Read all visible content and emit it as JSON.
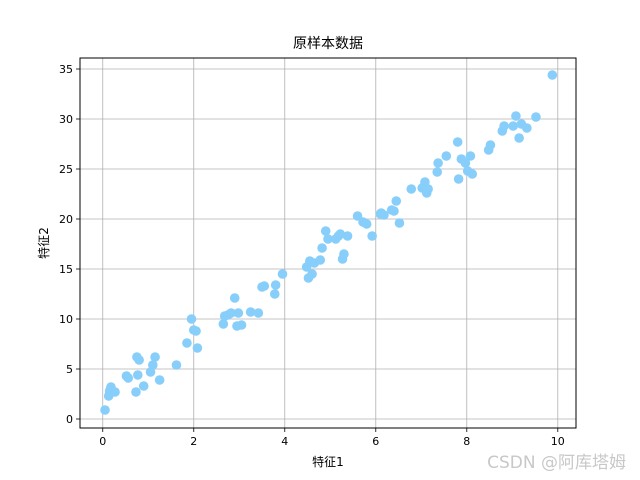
{
  "chart_data": {
    "type": "scatter",
    "title": "原样本数据",
    "xlabel": "特征1",
    "ylabel": "特征2",
    "xlim": [
      -0.5,
      10.4
    ],
    "ylim": [
      -0.9,
      36.1
    ],
    "xticks": [
      0,
      2,
      4,
      6,
      8,
      10
    ],
    "yticks": [
      0,
      5,
      10,
      15,
      20,
      25,
      30,
      35
    ],
    "grid": true,
    "marker_color": "#87cefa",
    "series": [
      {
        "x": [
          0.05,
          0.13,
          0.15,
          0.18,
          0.27,
          0.52,
          0.56,
          0.73,
          0.75,
          0.77,
          0.8,
          0.9,
          1.05,
          1.1,
          1.15,
          1.25,
          1.62,
          1.85,
          1.95,
          2.0,
          2.05,
          2.08,
          2.65,
          2.68,
          2.75,
          2.82,
          2.9,
          2.95,
          2.98,
          3.05,
          3.25,
          3.42,
          3.5,
          3.55,
          3.78,
          3.8,
          3.95,
          4.48,
          4.52,
          4.55,
          4.6,
          4.65,
          4.78,
          4.82,
          4.9,
          4.95,
          5.12,
          5.18,
          5.22,
          5.27,
          5.3,
          5.38,
          5.6,
          5.72,
          5.8,
          5.92,
          6.1,
          6.12,
          6.18,
          6.35,
          6.4,
          6.45,
          6.52,
          6.78,
          7.02,
          7.05,
          7.08,
          7.12,
          7.15,
          7.35,
          7.37,
          7.55,
          7.8,
          7.82,
          7.88,
          7.97,
          8.02,
          8.08,
          8.12,
          8.48,
          8.52,
          8.78,
          8.82,
          9.02,
          9.08,
          9.15,
          9.2,
          9.32,
          9.52,
          9.88
        ],
        "y": [
          0.9,
          2.3,
          2.8,
          3.2,
          2.7,
          4.3,
          4.1,
          2.7,
          6.2,
          4.4,
          5.9,
          3.3,
          4.7,
          5.4,
          6.2,
          3.9,
          5.4,
          7.6,
          10.0,
          8.9,
          8.8,
          7.1,
          9.5,
          10.3,
          10.4,
          10.6,
          12.1,
          9.3,
          10.6,
          9.4,
          10.7,
          10.6,
          13.2,
          13.3,
          12.5,
          13.4,
          14.5,
          15.2,
          14.1,
          15.8,
          14.5,
          15.6,
          15.9,
          17.1,
          18.8,
          18.0,
          18.0,
          18.3,
          18.5,
          16.0,
          16.5,
          18.3,
          20.3,
          19.7,
          19.5,
          18.3,
          20.5,
          20.6,
          20.4,
          20.9,
          20.8,
          21.8,
          19.6,
          23.0,
          23.1,
          23.2,
          23.7,
          22.6,
          23.0,
          24.7,
          25.6,
          26.3,
          27.7,
          24.0,
          26.0,
          25.6,
          24.8,
          26.3,
          24.5,
          26.9,
          27.4,
          28.8,
          29.3,
          29.3,
          30.3,
          28.1,
          29.5,
          29.1,
          30.2,
          34.4
        ]
      }
    ]
  },
  "watermark": "CSDN @阿库塔姆"
}
